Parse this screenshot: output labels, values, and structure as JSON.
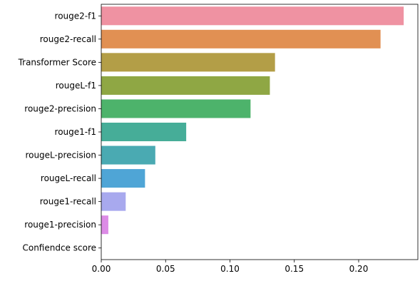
{
  "chart_data": {
    "type": "bar",
    "orientation": "horizontal",
    "title": "",
    "xlabel": "",
    "ylabel": "",
    "categories": [
      "rouge2-f1",
      "rouge2-recall",
      "Transformer Score",
      "rougeL-f1",
      "rouge2-precision",
      "rouge1-f1",
      "rougeL-precision",
      "rougeL-recall",
      "rouge1-recall",
      "rouge1-precision",
      "Confiendce score"
    ],
    "values": [
      0.235,
      0.217,
      0.135,
      0.131,
      0.116,
      0.066,
      0.042,
      0.034,
      0.019,
      0.0055,
      0.0
    ],
    "colors": [
      "#ef92a2",
      "#e19053",
      "#b39e47",
      "#8fa744",
      "#4db36b",
      "#46ad98",
      "#4aaab2",
      "#4fa5d6",
      "#a8a9ee",
      "#dc8be6",
      "#f6a0c4"
    ],
    "xlim": [
      0,
      0.246
    ],
    "xticks": [
      0.0,
      0.05,
      0.1,
      0.15,
      0.2
    ],
    "xtick_labels": [
      "0.00",
      "0.05",
      "0.10",
      "0.15",
      "0.20"
    ],
    "grid": false,
    "legend": "none"
  }
}
